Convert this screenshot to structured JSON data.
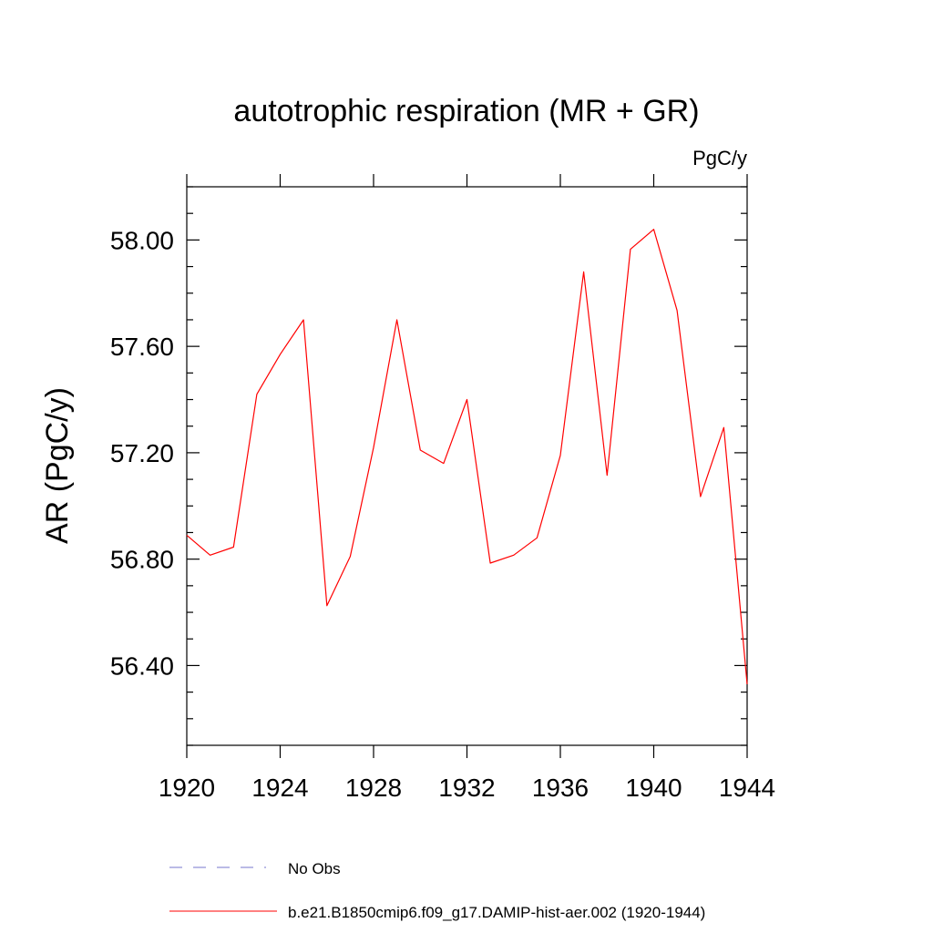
{
  "chart_data": {
    "type": "line",
    "title": "autotrophic respiration (MR + GR)",
    "units_label": "PgC/y",
    "ylabel": "AR  (PgC/y)",
    "xlabel": "",
    "xlim": [
      1920,
      1944
    ],
    "ylim": [
      56.1,
      58.2
    ],
    "x_ticks": [
      1920,
      1924,
      1928,
      1932,
      1936,
      1940,
      1944
    ],
    "y_ticks": [
      56.4,
      56.8,
      57.2,
      57.6,
      58.0
    ],
    "y_tick_labels": [
      "56.40",
      "56.80",
      "57.20",
      "57.60",
      "58.00"
    ],
    "grid": false,
    "legend_position": "bottom",
    "series": [
      {
        "name": "b.e21.B1850cmip6.f09_g17.DAMIP-hist-aer.002 (1920-1944)",
        "color": "#ff0000",
        "style": "solid",
        "x": [
          1920,
          1921,
          1922,
          1923,
          1924,
          1925,
          1926,
          1927,
          1928,
          1929,
          1930,
          1931,
          1932,
          1933,
          1934,
          1935,
          1936,
          1937,
          1938,
          1939,
          1940,
          1941,
          1942,
          1943,
          1944
        ],
        "values": [
          56.89,
          56.815,
          56.845,
          57.42,
          57.57,
          57.7,
          56.625,
          56.81,
          57.22,
          57.7,
          57.21,
          57.16,
          57.4,
          56.785,
          56.815,
          56.88,
          57.19,
          57.88,
          57.115,
          57.965,
          58.04,
          57.735,
          57.035,
          57.295,
          56.33
        ]
      }
    ],
    "legend": [
      {
        "label": "No Obs",
        "color": "#7777cc",
        "style": "dashed"
      },
      {
        "label": "b.e21.B1850cmip6.f09_g17.DAMIP-hist-aer.002 (1920-1944)",
        "color": "#ff0000",
        "style": "solid"
      }
    ]
  }
}
